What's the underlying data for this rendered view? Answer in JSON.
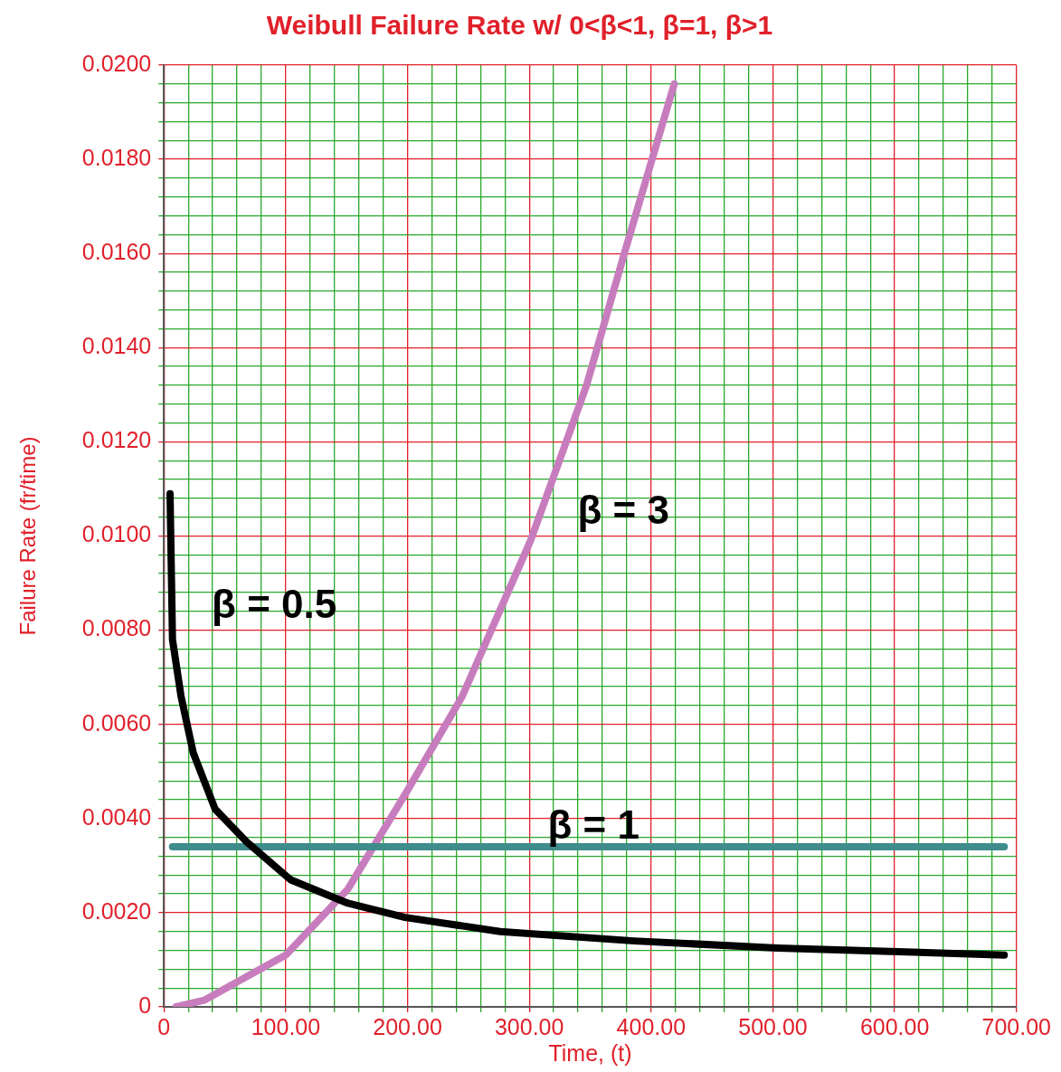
{
  "chart_data": {
    "type": "line",
    "title": "Weibull Failure Rate w/ 0<β<1, β=1, β>1",
    "xlabel": "Time, (t)",
    "ylabel": "Failure Rate (fr/time)",
    "xlim": [
      0,
      700
    ],
    "xticks": [
      {
        "value": 0,
        "label": "0"
      },
      {
        "value": 20,
        "label": null
      },
      {
        "value": 40,
        "label": null
      },
      {
        "value": 60,
        "label": null
      },
      {
        "value": 80,
        "label": null
      },
      {
        "value": 100,
        "label": "100.00"
      },
      {
        "value": 120,
        "label": null
      },
      {
        "value": 140,
        "label": null
      },
      {
        "value": 160,
        "label": null
      },
      {
        "value": 180,
        "label": null
      },
      {
        "value": 200,
        "label": "200.00"
      },
      {
        "value": 220,
        "label": null
      },
      {
        "value": 240,
        "label": null
      },
      {
        "value": 260,
        "label": null
      },
      {
        "value": 280,
        "label": null
      },
      {
        "value": 300,
        "label": "300.00"
      },
      {
        "value": 320,
        "label": null
      },
      {
        "value": 340,
        "label": null
      },
      {
        "value": 360,
        "label": null
      },
      {
        "value": 380,
        "label": null
      },
      {
        "value": 400,
        "label": "400.00"
      },
      {
        "value": 420,
        "label": null
      },
      {
        "value": 440,
        "label": null
      },
      {
        "value": 460,
        "label": null
      },
      {
        "value": 480,
        "label": null
      },
      {
        "value": 500,
        "label": "500.00"
      },
      {
        "value": 520,
        "label": null
      },
      {
        "value": 540,
        "label": null
      },
      {
        "value": 560,
        "label": null
      },
      {
        "value": 580,
        "label": null
      },
      {
        "value": 600,
        "label": "600.00"
      },
      {
        "value": 620,
        "label": null
      },
      {
        "value": 640,
        "label": null
      },
      {
        "value": 660,
        "label": null
      },
      {
        "value": 680,
        "label": null
      },
      {
        "value": 700,
        "label": "700.00"
      }
    ],
    "ylim": [
      0,
      0.02
    ],
    "yticks": [
      {
        "value": 0,
        "label": "0"
      },
      {
        "value": 0.0004,
        "label": null
      },
      {
        "value": 0.0008,
        "label": null
      },
      {
        "value": 0.0012,
        "label": null
      },
      {
        "value": 0.0016,
        "label": null
      },
      {
        "value": 0.002,
        "label": "0.0020"
      },
      {
        "value": 0.0024,
        "label": null
      },
      {
        "value": 0.0028,
        "label": null
      },
      {
        "value": 0.0032,
        "label": null
      },
      {
        "value": 0.0036,
        "label": null
      },
      {
        "value": 0.004,
        "label": "0.0040"
      },
      {
        "value": 0.0044,
        "label": null
      },
      {
        "value": 0.0048,
        "label": null
      },
      {
        "value": 0.0052,
        "label": null
      },
      {
        "value": 0.0056,
        "label": null
      },
      {
        "value": 0.006,
        "label": "0.0060"
      },
      {
        "value": 0.0064,
        "label": null
      },
      {
        "value": 0.0068,
        "label": null
      },
      {
        "value": 0.0072,
        "label": null
      },
      {
        "value": 0.0076,
        "label": null
      },
      {
        "value": 0.008,
        "label": "0.0080"
      },
      {
        "value": 0.0084,
        "label": null
      },
      {
        "value": 0.0088,
        "label": null
      },
      {
        "value": 0.0092,
        "label": null
      },
      {
        "value": 0.0096,
        "label": null
      },
      {
        "value": 0.01,
        "label": "0.0100"
      },
      {
        "value": 0.0104,
        "label": null
      },
      {
        "value": 0.0108,
        "label": null
      },
      {
        "value": 0.0112,
        "label": null
      },
      {
        "value": 0.0116,
        "label": null
      },
      {
        "value": 0.012,
        "label": "0.0120"
      },
      {
        "value": 0.0124,
        "label": null
      },
      {
        "value": 0.0128,
        "label": null
      },
      {
        "value": 0.0132,
        "label": null
      },
      {
        "value": 0.0136,
        "label": null
      },
      {
        "value": 0.014,
        "label": "0.0140"
      },
      {
        "value": 0.0144,
        "label": null
      },
      {
        "value": 0.0148,
        "label": null
      },
      {
        "value": 0.0152,
        "label": null
      },
      {
        "value": 0.0156,
        "label": null
      },
      {
        "value": 0.016,
        "label": "0.0160"
      },
      {
        "value": 0.0164,
        "label": null
      },
      {
        "value": 0.0168,
        "label": null
      },
      {
        "value": 0.0172,
        "label": null
      },
      {
        "value": 0.0176,
        "label": null
      },
      {
        "value": 0.018,
        "label": "0.0180"
      },
      {
        "value": 0.0184,
        "label": null
      },
      {
        "value": 0.0188,
        "label": null
      },
      {
        "value": 0.0192,
        "label": null
      },
      {
        "value": 0.0196,
        "label": null
      },
      {
        "value": 0.02,
        "label": "0.0200"
      }
    ],
    "grid": true,
    "legend": false,
    "marker": "none",
    "line_style": "solid",
    "series": [
      {
        "color": "#000000",
        "x": [
          5,
          7,
          14,
          24,
          42,
          68,
          104,
          151,
          198,
          276,
          386,
          504,
          690
        ],
        "values": [
          0.0109,
          0.0078,
          0.0066,
          0.0054,
          0.0042,
          0.0035,
          0.0027,
          0.0022,
          0.0019,
          0.0016,
          0.0014,
          0.00125,
          0.0011
        ]
      },
      {
        "color": "#3f8c8c",
        "x": [
          7,
          690
        ],
        "values": [
          0.0034,
          0.0034
        ]
      },
      {
        "color": "#c77dbd",
        "x": [
          10,
          33,
          72,
          100,
          151,
          200,
          245,
          301,
          347,
          378,
          419
        ],
        "values": [
          0,
          0.00014,
          0.0007,
          0.0011,
          0.0025,
          0.0046,
          0.0066,
          0.0099,
          0.0132,
          0.016,
          0.0196
        ]
      }
    ],
    "annotations": [
      "β = 0.5",
      "β = 3",
      "β = 1"
    ]
  }
}
